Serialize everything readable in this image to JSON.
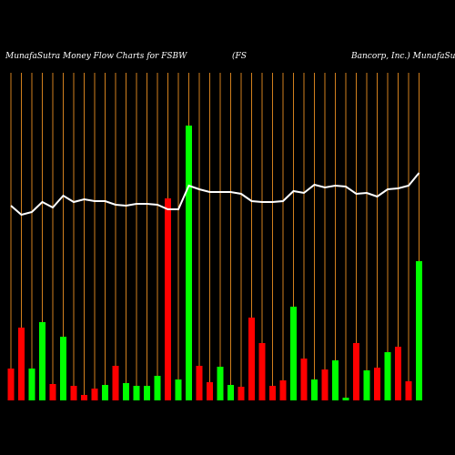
{
  "chart_data": {
    "type": "bar",
    "title": [
      "MunafaSutra  Money Flow  Charts for FSBW",
      "(FS",
      "Bancorp, Inc.) MunafaSutra"
    ],
    "categories": [
      null,
      null,
      null,
      null,
      null,
      null,
      null,
      null,
      null,
      null,
      null,
      null,
      null,
      null,
      null,
      null,
      null,
      null,
      null,
      null,
      null,
      null,
      null,
      null,
      null,
      null,
      null,
      null,
      null,
      null,
      null,
      null,
      null,
      null,
      null,
      null,
      null,
      null,
      null,
      null
    ],
    "series": [
      {
        "values": [
          35,
          80,
          35,
          86,
          18,
          70,
          16,
          6,
          13,
          17,
          38,
          19,
          16,
          16,
          27,
          222,
          23,
          302,
          38,
          20,
          37,
          17,
          15,
          91,
          63,
          16,
          22,
          103,
          46,
          23,
          34,
          44,
          3,
          63,
          33,
          36,
          53,
          59,
          21,
          153
        ],
        "colors": [
          "#ff0000",
          "#ff0000",
          "#00ff00",
          "#00ff00",
          "#ff0000",
          "#00ff00",
          "#ff0000",
          "#ff0000",
          "#ff0000",
          "#00ff00",
          "#ff0000",
          "#00ff00",
          "#00ff00",
          "#00ff00",
          "#00ff00",
          "#ff0000",
          "#00ff00",
          "#00ff00",
          "#ff0000",
          "#ff0000",
          "#00ff00",
          "#00ff00",
          "#ff0000",
          "#ff0000",
          "#ff0000",
          "#ff0000",
          "#ff0000",
          "#00ff00",
          "#ff0000",
          "#00ff00",
          "#ff0000",
          "#00ff00",
          "#00ff00",
          "#ff0000",
          "#00ff00",
          "#ff0000",
          "#00ff00",
          "#ff0000",
          "#ff0000",
          "#00ff00"
        ]
      },
      {
        "type": "line",
        "color": "#ffffff",
        "values": [
          214,
          204,
          207,
          218,
          212,
          225,
          218,
          221,
          219,
          219,
          215,
          214,
          216,
          216,
          215,
          210,
          210,
          236,
          232,
          229,
          229,
          229,
          227,
          219,
          218,
          218,
          219,
          230,
          228,
          237,
          234,
          236,
          235,
          227,
          228,
          224,
          232,
          233,
          236,
          250
        ]
      }
    ],
    "ylim": [
      0,
      360
    ],
    "grid": true,
    "grid_color": "#d2801e",
    "background": "#000000"
  }
}
